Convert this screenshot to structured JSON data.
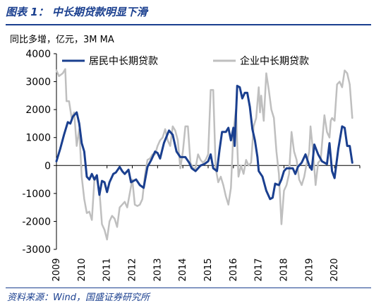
{
  "header": {
    "title": "图表 1： 中长期贷款明显下滑",
    "unit": "同比多增，亿元，3M MA"
  },
  "footer": {
    "source": "资料来源：Wind，国盛证券研究所"
  },
  "chart_data": {
    "type": "line",
    "title": "中长期贷款明显下滑",
    "ylabel": "同比多增，亿元，3M MA",
    "ylim": [
      -3000,
      4000
    ],
    "yticks": [
      "4000",
      "3000",
      "2000",
      "1000",
      "0",
      "-1000",
      "-2000",
      "-3000"
    ],
    "xlim": [
      2009,
      2021
    ],
    "xticks": [
      "2009",
      "2010",
      "2011",
      "2012",
      "2013",
      "2014",
      "2015",
      "2016",
      "2017",
      "2018",
      "2019",
      "2020"
    ],
    "legend_position": "top",
    "series": [
      {
        "name": "居民中长期贷款",
        "color": "#1a3f8f",
        "points": [
          [
            2009.0,
            150
          ],
          [
            2009.15,
            600
          ],
          [
            2009.3,
            1100
          ],
          [
            2009.45,
            1550
          ],
          [
            2009.55,
            1500
          ],
          [
            2009.65,
            1750
          ],
          [
            2009.8,
            1900
          ],
          [
            2009.9,
            1500
          ],
          [
            2010.0,
            800
          ],
          [
            2010.1,
            500
          ],
          [
            2010.2,
            -400
          ],
          [
            2010.3,
            -500
          ],
          [
            2010.4,
            -300
          ],
          [
            2010.5,
            -500
          ],
          [
            2010.6,
            -350
          ],
          [
            2010.7,
            -1050
          ],
          [
            2010.8,
            -550
          ],
          [
            2010.9,
            -600
          ],
          [
            2011.0,
            -950
          ],
          [
            2011.1,
            -600
          ],
          [
            2011.25,
            -300
          ],
          [
            2011.35,
            -250
          ],
          [
            2011.5,
            -50
          ],
          [
            2011.6,
            -200
          ],
          [
            2011.7,
            -300
          ],
          [
            2011.85,
            -150
          ],
          [
            2011.95,
            -600
          ],
          [
            2012.05,
            -550
          ],
          [
            2012.15,
            -500
          ],
          [
            2012.3,
            -700
          ],
          [
            2012.45,
            -800
          ],
          [
            2012.6,
            -50
          ],
          [
            2012.75,
            200
          ],
          [
            2012.9,
            500
          ],
          [
            2013.0,
            450
          ],
          [
            2013.1,
            250
          ],
          [
            2013.25,
            800
          ],
          [
            2013.45,
            1250
          ],
          [
            2013.6,
            1100
          ],
          [
            2013.75,
            500
          ],
          [
            2013.9,
            300
          ],
          [
            2014.1,
            300
          ],
          [
            2014.25,
            100
          ],
          [
            2014.35,
            -100
          ],
          [
            2014.5,
            -200
          ],
          [
            2014.7,
            0
          ],
          [
            2014.85,
            50
          ],
          [
            2015.0,
            150
          ],
          [
            2015.1,
            400
          ],
          [
            2015.2,
            -100
          ],
          [
            2015.35,
            -200
          ],
          [
            2015.45,
            550
          ],
          [
            2015.55,
            1200
          ],
          [
            2015.7,
            1200
          ],
          [
            2015.8,
            1350
          ],
          [
            2015.9,
            900
          ],
          [
            2016.0,
            1350
          ],
          [
            2016.05,
            700
          ],
          [
            2016.15,
            2850
          ],
          [
            2016.25,
            2800
          ],
          [
            2016.35,
            2400
          ],
          [
            2016.45,
            2600
          ],
          [
            2016.55,
            2600
          ],
          [
            2016.65,
            2100
          ],
          [
            2016.75,
            1300
          ],
          [
            2016.85,
            900
          ],
          [
            2016.95,
            300
          ],
          [
            2017.0,
            -200
          ],
          [
            2017.15,
            -400
          ],
          [
            2017.3,
            -900
          ],
          [
            2017.45,
            -1200
          ],
          [
            2017.55,
            -1150
          ],
          [
            2017.65,
            -650
          ],
          [
            2017.8,
            -700
          ],
          [
            2017.9,
            -500
          ],
          [
            2018.0,
            -200
          ],
          [
            2018.1,
            -100
          ],
          [
            2018.2,
            -100
          ],
          [
            2018.35,
            -100
          ],
          [
            2018.45,
            -300
          ],
          [
            2018.55,
            -50
          ],
          [
            2018.7,
            100
          ],
          [
            2018.85,
            400
          ],
          [
            2019.0,
            0
          ],
          [
            2019.1,
            -150
          ],
          [
            2019.2,
            750
          ],
          [
            2019.35,
            400
          ],
          [
            2019.5,
            150
          ],
          [
            2019.7,
            50
          ],
          [
            2019.8,
            800
          ],
          [
            2019.9,
            -200
          ],
          [
            2020.0,
            -450
          ],
          [
            2020.15,
            600
          ],
          [
            2020.3,
            1400
          ],
          [
            2020.4,
            1350
          ],
          [
            2020.5,
            700
          ],
          [
            2020.6,
            700
          ],
          [
            2020.7,
            100
          ]
        ]
      },
      {
        "name": "企业中长期贷款",
        "color": "#bfbfbf",
        "points": [
          [
            2009.0,
            3400
          ],
          [
            2009.1,
            3200
          ],
          [
            2009.25,
            3300
          ],
          [
            2009.35,
            3450
          ],
          [
            2009.4,
            2300
          ],
          [
            2009.5,
            2300
          ],
          [
            2009.6,
            1700
          ],
          [
            2009.7,
            1900
          ],
          [
            2009.8,
            700
          ],
          [
            2009.9,
            1300
          ],
          [
            2010.0,
            -400
          ],
          [
            2010.1,
            -1200
          ],
          [
            2010.2,
            -1700
          ],
          [
            2010.3,
            -1650
          ],
          [
            2010.4,
            -1950
          ],
          [
            2010.5,
            -500
          ],
          [
            2010.6,
            -500
          ],
          [
            2010.7,
            -900
          ],
          [
            2010.8,
            -2100
          ],
          [
            2010.9,
            -2300
          ],
          [
            2011.0,
            -2650
          ],
          [
            2011.1,
            -2000
          ],
          [
            2011.2,
            -1800
          ],
          [
            2011.3,
            -1900
          ],
          [
            2011.4,
            -2200
          ],
          [
            2011.5,
            -1500
          ],
          [
            2011.6,
            -1400
          ],
          [
            2011.7,
            -1300
          ],
          [
            2011.8,
            -1500
          ],
          [
            2011.9,
            -1000
          ],
          [
            2012.0,
            -500
          ],
          [
            2012.1,
            -1400
          ],
          [
            2012.2,
            -1450
          ],
          [
            2012.3,
            -1400
          ],
          [
            2012.4,
            -1200
          ],
          [
            2012.5,
            -350
          ],
          [
            2012.6,
            200
          ],
          [
            2012.7,
            250
          ],
          [
            2012.8,
            400
          ],
          [
            2012.9,
            400
          ],
          [
            2013.0,
            700
          ],
          [
            2013.1,
            900
          ],
          [
            2013.2,
            1000
          ],
          [
            2013.3,
            1300
          ],
          [
            2013.4,
            900
          ],
          [
            2013.5,
            700
          ],
          [
            2013.6,
            1400
          ],
          [
            2013.7,
            1250
          ],
          [
            2013.8,
            900
          ],
          [
            2013.9,
            -100
          ],
          [
            2014.0,
            500
          ],
          [
            2014.1,
            1400
          ],
          [
            2014.2,
            1400
          ],
          [
            2014.3,
            100
          ],
          [
            2014.4,
            -100
          ],
          [
            2014.5,
            -100
          ],
          [
            2014.6,
            400
          ],
          [
            2014.7,
            200
          ],
          [
            2014.8,
            100
          ],
          [
            2014.9,
            200
          ],
          [
            2015.0,
            400
          ],
          [
            2015.1,
            2700
          ],
          [
            2015.2,
            2700
          ],
          [
            2015.3,
            -100
          ],
          [
            2015.4,
            -600
          ],
          [
            2015.5,
            -400
          ],
          [
            2015.6,
            -700
          ],
          [
            2015.7,
            -1100
          ],
          [
            2015.8,
            -1400
          ],
          [
            2015.9,
            -800
          ],
          [
            2016.0,
            1200
          ],
          [
            2016.1,
            2000
          ],
          [
            2016.2,
            -400
          ],
          [
            2016.3,
            0
          ],
          [
            2016.4,
            -300
          ],
          [
            2016.5,
            200
          ],
          [
            2016.6,
            0
          ],
          [
            2016.7,
            100
          ],
          [
            2016.8,
            1400
          ],
          [
            2016.9,
            1700
          ],
          [
            2017.0,
            2800
          ],
          [
            2017.05,
            1900
          ],
          [
            2017.1,
            2500
          ],
          [
            2017.2,
            1600
          ],
          [
            2017.3,
            3300
          ],
          [
            2017.4,
            2700
          ],
          [
            2017.5,
            2000
          ],
          [
            2017.6,
            1700
          ],
          [
            2017.7,
            500
          ],
          [
            2017.8,
            -300
          ],
          [
            2017.9,
            -2100
          ],
          [
            2018.0,
            -900
          ],
          [
            2018.1,
            -700
          ],
          [
            2018.2,
            -300
          ],
          [
            2018.3,
            1200
          ],
          [
            2018.4,
            500
          ],
          [
            2018.5,
            200
          ],
          [
            2018.6,
            -500
          ],
          [
            2018.7,
            -700
          ],
          [
            2018.8,
            -400
          ],
          [
            2018.9,
            100
          ],
          [
            2019.0,
            500
          ],
          [
            2019.05,
            1400
          ],
          [
            2019.15,
            500
          ],
          [
            2019.25,
            -700
          ],
          [
            2019.35,
            100
          ],
          [
            2019.45,
            200
          ],
          [
            2019.6,
            1800
          ],
          [
            2019.7,
            1200
          ],
          [
            2019.8,
            1000
          ],
          [
            2019.85,
            1600
          ],
          [
            2019.9,
            1700
          ],
          [
            2020.0,
            1600
          ],
          [
            2020.1,
            2900
          ],
          [
            2020.2,
            3000
          ],
          [
            2020.3,
            2800
          ],
          [
            2020.4,
            3400
          ],
          [
            2020.5,
            3300
          ],
          [
            2020.6,
            2900
          ],
          [
            2020.7,
            1700
          ]
        ]
      }
    ]
  }
}
